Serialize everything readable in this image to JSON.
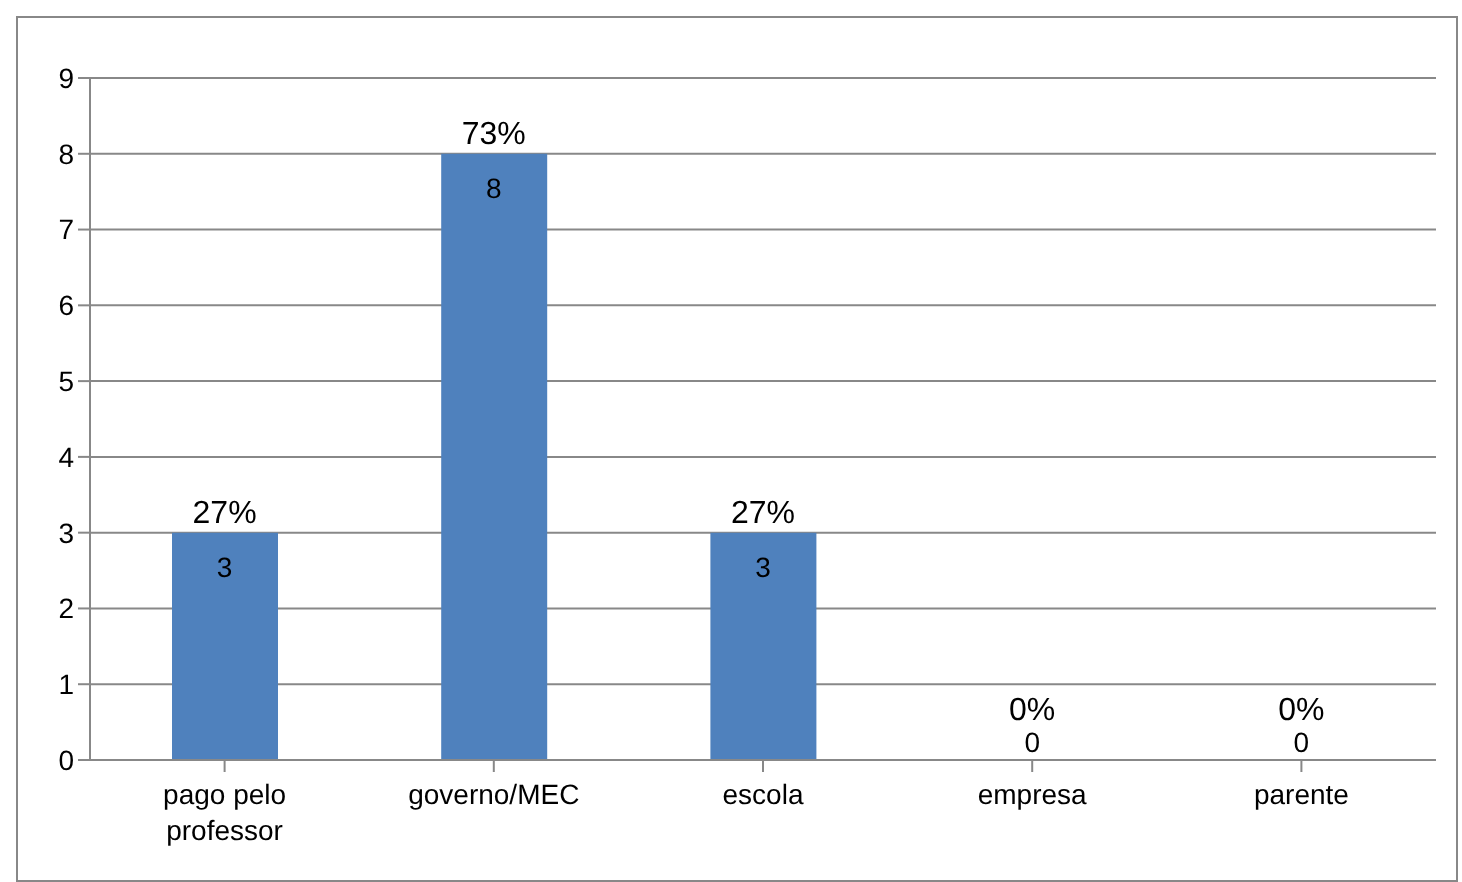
{
  "chart_data": {
    "type": "bar",
    "categories": [
      "pago pelo professor",
      "governo/MEC",
      "escola",
      "empresa",
      "parente"
    ],
    "values": [
      3,
      8,
      3,
      0,
      0
    ],
    "color": "#4f81bd",
    "data_labels": true,
    "annotations": [
      {
        "text": "27%",
        "x": "pago pelo professor",
        "y": 3
      },
      {
        "text": "73%",
        "x": "governo/MEC",
        "y": 8
      },
      {
        "text": "27%",
        "x": "escola",
        "y": 3
      },
      {
        "text": "0%",
        "x": "empresa",
        "y": 0
      },
      {
        "text": "0%",
        "x": "parente",
        "y": 0
      }
    ],
    "ylim": [
      0,
      9
    ],
    "yticks": [
      0,
      1,
      2,
      3,
      4,
      5,
      6,
      7,
      8,
      9
    ],
    "grid": "y",
    "legend": false
  }
}
